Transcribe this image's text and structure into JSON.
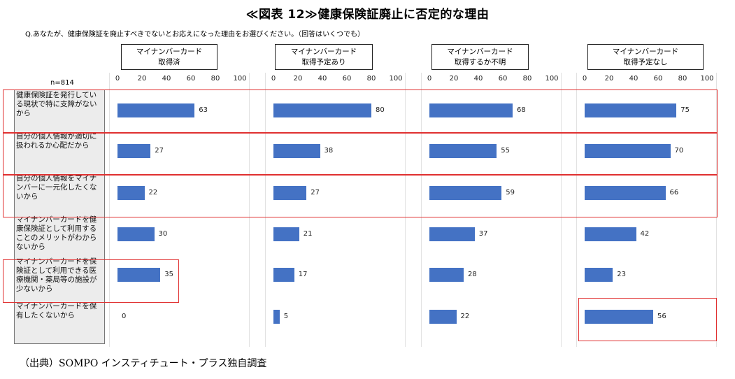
{
  "title": "≪図表 12≫健康保険証廃止に否定的な理由",
  "question": "Q.あなたが、健康保険証を廃止すべきでないとお応えになった理由をお選びください。（回答はいくつでも）",
  "n_label": "n=814",
  "source": "（出典）SOMPO インスティチュート・プラス独自調査",
  "colors": {
    "bar": "#4472c4",
    "highlight": "#e03030",
    "category_bg": "#ececec"
  },
  "chart_data": {
    "type": "bar",
    "orientation": "horizontal",
    "xlim": [
      0,
      100
    ],
    "ticks": [
      "0",
      "20",
      "40",
      "60",
      "80",
      "100"
    ],
    "categories": [
      "健康保険証を発行している現状で特に支障がないから",
      "自分の個人情報が適切に扱われるか心配だから",
      "自分の個人情報をマイナンバーに一元化したくないから",
      "マイナンバーカードを健康保険証として利用することのメリットがわからないから",
      "マイナンバーカードを保険証として利用できる医療機関・薬局等の施設が少ないから",
      "マイナンバーカードを保有したくないから"
    ],
    "series": [
      {
        "name": "マイナンバーカード 取得済",
        "name_lines": [
          "マイナンバーカード",
          "取得済"
        ],
        "values": [
          63,
          27,
          22,
          30,
          35,
          0
        ]
      },
      {
        "name": "マイナンバーカード 取得予定あり",
        "name_lines": [
          "マイナンバーカード",
          "取得予定あり"
        ],
        "values": [
          80,
          38,
          27,
          21,
          17,
          5
        ]
      },
      {
        "name": "マイナンバーカード 取得するか不明",
        "name_lines": [
          "マイナンバーカード",
          "取得するか不明"
        ],
        "values": [
          68,
          55,
          59,
          37,
          28,
          22
        ]
      },
      {
        "name": "マイナンバーカード 取得予定なし",
        "name_lines": [
          "マイナンバーカード",
          "取得予定なし"
        ],
        "values": [
          75,
          70,
          66,
          42,
          23,
          56
        ]
      }
    ]
  }
}
